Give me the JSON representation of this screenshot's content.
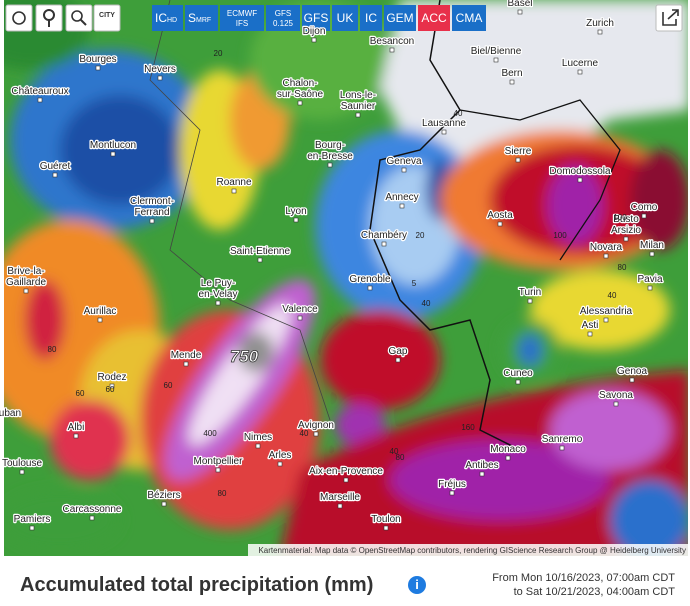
{
  "toolbar": {
    "city_button": "CITY",
    "models": [
      {
        "main": "IC",
        "sub": "HD"
      },
      {
        "main": "S",
        "sub": "MRF"
      },
      {
        "main": "ECMWF",
        "sub": "IFS"
      },
      {
        "main": "GFS",
        "sub": "0.125"
      },
      {
        "main": "GFS"
      },
      {
        "main": "UK"
      },
      {
        "main": "IC"
      },
      {
        "main": "GEM"
      },
      {
        "main": "ACC"
      },
      {
        "main": "CMA"
      }
    ]
  },
  "map": {
    "cities": [
      "Basel",
      "Zurich",
      "Dijon",
      "Besancon",
      "Biel/Bienne",
      "Bourges",
      "Nevers",
      "Lucerne",
      "Bern",
      "Châteauroux",
      [
        "Chalon-",
        "sur-Saône"
      ],
      [
        "Lons-le-",
        "Saunier"
      ],
      "Lausanne",
      "Montlucon",
      "Sierre",
      [
        "Bourg-",
        "en-Bresse"
      ],
      "Geneva",
      "Guéret",
      "Domodossola",
      "Roanne",
      "Annecy",
      [
        "Clermont-",
        "Ferrand"
      ],
      "Lyon",
      "Como",
      "Aosta",
      [
        "Busto",
        "Arsizio"
      ],
      "Chambéry",
      "Novara",
      "Milan",
      "Saint-Etienne",
      [
        "Brive-la-",
        "Gaillarde"
      ],
      [
        "Le Puy-",
        "en-Velay"
      ],
      "Grenoble",
      "Pavia",
      "Turin",
      "Aurillac",
      "Valence",
      "Alessandria",
      "Asti",
      "Gap",
      "Mende",
      "Cuneo",
      "Genoa",
      "Rodez",
      "Savona",
      "Albi",
      "Avignon",
      "Nimes",
      "Sanremo",
      "Monaco",
      "Montpellier",
      "Arles",
      "Toulouse",
      "Antibes",
      "Aix-en-Provence",
      "Fréjus",
      "Béziers",
      "Marseille",
      "Carcassonne",
      "Pamiers",
      "Toulon",
      "Montauban"
    ],
    "contour_labels": [
      750,
      400,
      80,
      60,
      60,
      40,
      40,
      20,
      20,
      5,
      160,
      100,
      100,
      80,
      80,
      80,
      40,
      60,
      40,
      40
    ],
    "attribution": "Kartenmaterial: Map data © OpenStreetMap contributors, rendering GIScience Research Group @ Heidelberg University"
  },
  "footer": {
    "title": "Accumulated total precipitation (mm)",
    "from": "From Mon 10/16/2023, 07:00am CDT",
    "to": "to Sat 10/21/2023, 04:00am CDT"
  }
}
